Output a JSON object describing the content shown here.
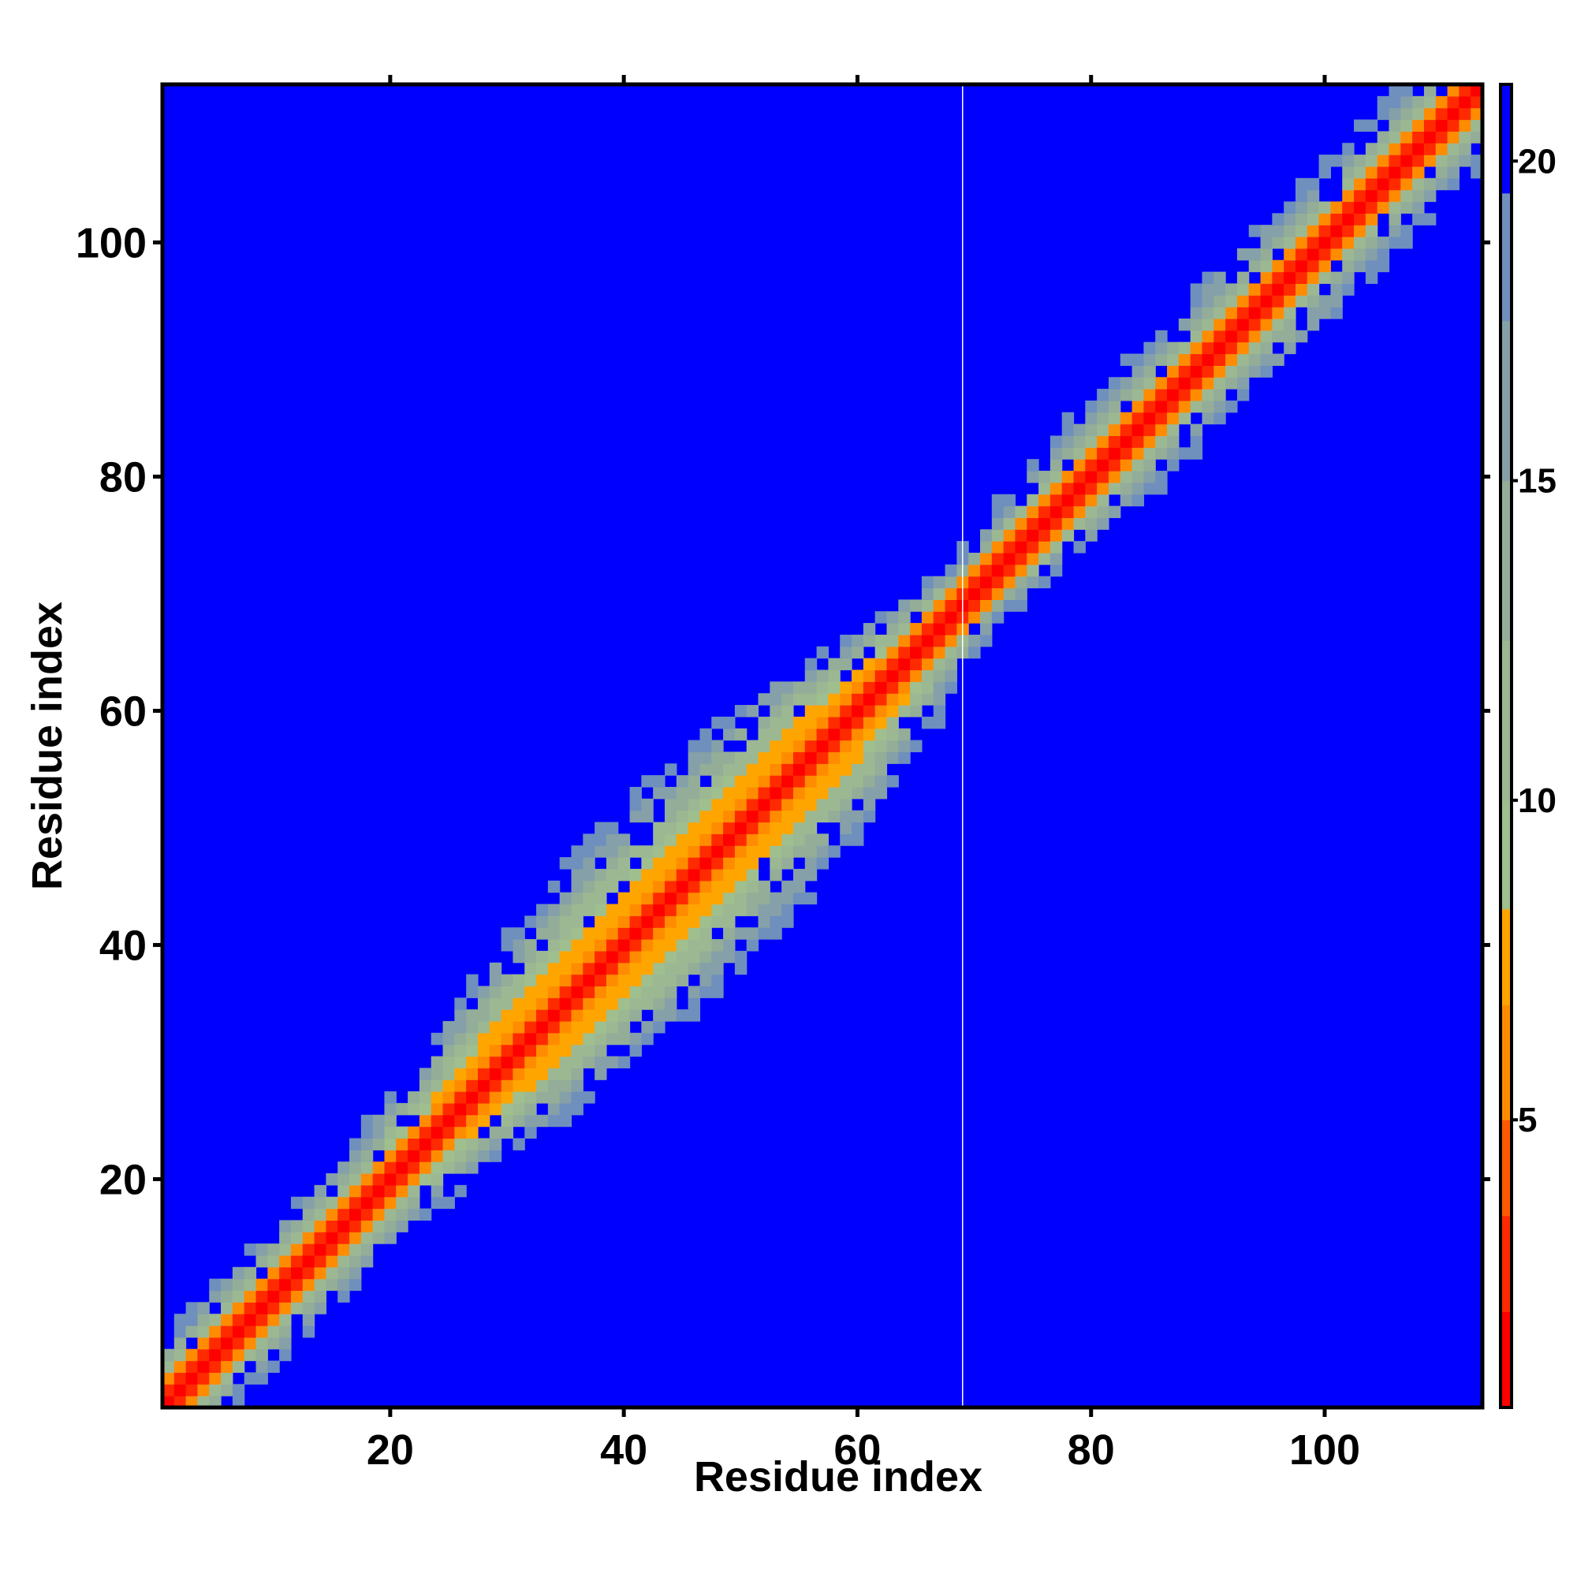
{
  "chart_data": {
    "type": "heatmap",
    "title": "",
    "xlabel": "Residue index",
    "ylabel": "Residue index",
    "n_residues": 113,
    "xlim": [
      1,
      113
    ],
    "ylim": [
      1,
      113
    ],
    "x_ticks": [
      20,
      40,
      60,
      80,
      100
    ],
    "y_ticks": [
      20,
      40,
      60,
      80,
      100
    ],
    "colorbar": {
      "range": [
        0.5,
        21.2
      ],
      "ticks": [
        5,
        10,
        15,
        20
      ],
      "bands": [
        {
          "from": 0.5,
          "to": 2.0,
          "color": "#ff0000"
        },
        {
          "from": 2.0,
          "to": 3.5,
          "color": "#ff2a00"
        },
        {
          "from": 3.5,
          "to": 5.0,
          "color": "#ff5a00"
        },
        {
          "from": 5.0,
          "to": 6.8,
          "color": "#ff8c00"
        },
        {
          "from": 6.8,
          "to": 8.3,
          "color": "#ffa500"
        },
        {
          "from": 8.3,
          "to": 10.0,
          "color": "#9fbf8f"
        },
        {
          "from": 10.0,
          "to": 12.5,
          "color": "#9cb893"
        },
        {
          "from": 12.5,
          "to": 15.0,
          "color": "#93ad98"
        },
        {
          "from": 15.0,
          "to": 17.5,
          "color": "#85a0a8"
        },
        {
          "from": 17.5,
          "to": 19.5,
          "color": "#6f8fbd"
        },
        {
          "from": 19.5,
          "to": 21.2,
          "color": "#0000ff"
        }
      ]
    },
    "background_color": "#0000ff",
    "gap_column": 69,
    "band_profile": [
      {
        "residue": 1,
        "red": 1.5,
        "orange": 2.5,
        "green": 5.0
      },
      {
        "residue": 10,
        "red": 1.5,
        "orange": 2.5,
        "green": 5.5
      },
      {
        "residue": 20,
        "red": 1.5,
        "orange": 2.5,
        "green": 6.0
      },
      {
        "residue": 25,
        "red": 1.5,
        "orange": 3.0,
        "green": 7.0
      },
      {
        "residue": 30,
        "red": 1.5,
        "orange": 4.0,
        "green": 9.0
      },
      {
        "residue": 40,
        "red": 1.5,
        "orange": 5.0,
        "green": 11.0
      },
      {
        "residue": 50,
        "red": 1.5,
        "orange": 4.5,
        "green": 11.0
      },
      {
        "residue": 58,
        "red": 1.5,
        "orange": 4.0,
        "green": 9.5
      },
      {
        "residue": 65,
        "red": 1.5,
        "orange": 2.5,
        "green": 6.0
      },
      {
        "residue": 70,
        "red": 1.5,
        "orange": 2.0,
        "green": 4.0
      },
      {
        "residue": 80,
        "red": 1.5,
        "orange": 2.5,
        "green": 6.0
      },
      {
        "residue": 95,
        "red": 1.5,
        "orange": 2.5,
        "green": 6.5
      },
      {
        "residue": 113,
        "red": 1.5,
        "orange": 2.5,
        "green": 6.0
      }
    ]
  }
}
